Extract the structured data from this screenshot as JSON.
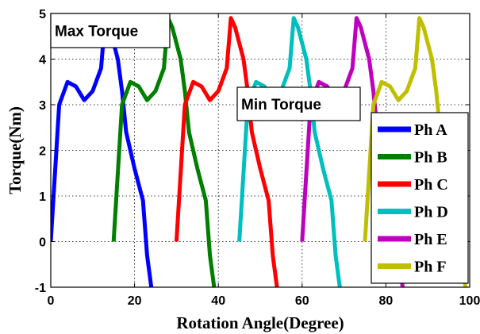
{
  "chart_data": {
    "type": "line",
    "title": "",
    "xlabel": "Rotation Angle(Degree)",
    "ylabel": "Torque(Nm)",
    "xlim": [
      0,
      100
    ],
    "ylim": [
      -1,
      5
    ],
    "xticks": [
      "0",
      "20",
      "40",
      "60",
      "80",
      "100"
    ],
    "yticks": [
      "-1",
      "0",
      "1",
      "2",
      "3",
      "4",
      "5"
    ],
    "grid": true,
    "legend_position": "right",
    "annotations": [
      {
        "name": "max",
        "text": "Max Torque"
      },
      {
        "name": "min",
        "text": "Min Torque"
      }
    ],
    "series": [
      {
        "name": "Ph A",
        "color": "#0000ff",
        "x": [
          0,
          2,
          4,
          6,
          8,
          9,
          10,
          12,
          13,
          14,
          16,
          17,
          18,
          20,
          22,
          23,
          24
        ],
        "y": [
          0,
          3.0,
          3.5,
          3.4,
          3.1,
          3.2,
          3.3,
          3.8,
          4.9,
          4.7,
          4.0,
          3.3,
          2.4,
          1.6,
          0.9,
          -0.3,
          -1
        ]
      },
      {
        "name": "Ph B",
        "color": "#007f00",
        "x": [
          15,
          17,
          19,
          21,
          23,
          24,
          25,
          27,
          28,
          29,
          31,
          32,
          33,
          35,
          37,
          38,
          39
        ],
        "y": [
          0,
          3.0,
          3.5,
          3.4,
          3.1,
          3.2,
          3.3,
          3.8,
          4.9,
          4.7,
          4.0,
          3.3,
          2.4,
          1.6,
          0.9,
          -0.3,
          -1
        ]
      },
      {
        "name": "Ph C",
        "color": "#ff0000",
        "x": [
          30,
          32,
          34,
          36,
          38,
          39,
          40,
          42,
          43,
          44,
          46,
          47,
          48,
          50,
          52,
          53,
          54
        ],
        "y": [
          0,
          3.0,
          3.5,
          3.4,
          3.1,
          3.2,
          3.3,
          3.8,
          4.9,
          4.7,
          4.0,
          3.3,
          2.4,
          1.6,
          0.9,
          -0.3,
          -1
        ]
      },
      {
        "name": "Ph D",
        "color": "#00bfbf",
        "x": [
          45,
          47,
          49,
          51,
          53,
          54,
          55,
          57,
          58,
          59,
          61,
          62,
          63,
          65,
          67,
          68,
          69
        ],
        "y": [
          0,
          3.0,
          3.5,
          3.4,
          3.1,
          3.2,
          3.3,
          3.8,
          4.9,
          4.7,
          4.0,
          3.3,
          2.4,
          1.6,
          0.9,
          -0.3,
          -1
        ]
      },
      {
        "name": "Ph E",
        "color": "#bf00bf",
        "x": [
          60,
          62,
          64,
          66,
          68,
          69,
          70,
          72,
          73,
          74,
          76,
          77,
          78,
          80,
          82,
          83,
          84
        ],
        "y": [
          0,
          3.0,
          3.5,
          3.4,
          3.1,
          3.2,
          3.3,
          3.8,
          4.9,
          4.7,
          4.0,
          3.3,
          2.4,
          1.6,
          0.9,
          -0.3,
          -1
        ]
      },
      {
        "name": "Ph F",
        "color": "#bfbf00",
        "x": [
          75,
          77,
          79,
          81,
          83,
          84,
          85,
          87,
          88,
          89,
          91,
          92,
          93,
          95,
          97,
          98,
          99
        ],
        "y": [
          0,
          3.0,
          3.5,
          3.4,
          3.1,
          3.2,
          3.3,
          3.8,
          4.9,
          4.7,
          4.0,
          3.3,
          2.4,
          1.6,
          0.9,
          -0.3,
          -1
        ]
      }
    ]
  }
}
